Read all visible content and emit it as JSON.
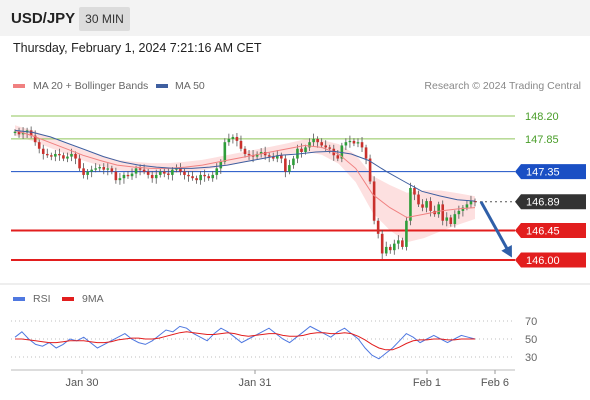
{
  "header": {
    "symbol": "USD/JPY",
    "timeframe": "30 MIN"
  },
  "datetime": "Thursday, February 1, 2024 7:21:16 AM CET",
  "legend": {
    "ma20_label": "MA 20 + Bollinger Bands",
    "ma50_label": "MA 50",
    "credit": "Research © 2024 Trading Central"
  },
  "rsi_legend": {
    "rsi_label": "RSI",
    "ma_label": "9MA"
  },
  "colors": {
    "accent_blue": "#1a4fc4",
    "support_red": "#e21e1e",
    "resistance_green": "#8fc55a",
    "candle_up": "#2f9e3a",
    "candle_down": "#c9302c",
    "bollinger_fill": "#fde0e0",
    "ma20": "#f08080",
    "ma50": "#3f5fa0",
    "rsi": "#4f78e0",
    "rsi_ma": "#e21e1e",
    "forecast_arrow": "#2f5fa8",
    "current_price_tag": "#333333"
  },
  "chart_data": {
    "type": "candlestick",
    "instrument": "USD/JPY",
    "timeframe": "30 MIN",
    "y_range": [
      145.85,
      148.35
    ],
    "x_ticks": [
      "Jan 30",
      "Jan 31",
      "Feb 1",
      "Feb 6"
    ],
    "levels": [
      {
        "value": 148.2,
        "label": "148.20",
        "kind": "resistance"
      },
      {
        "value": 147.85,
        "label": "147.85",
        "kind": "resistance"
      },
      {
        "value": 147.35,
        "label": "147.35",
        "kind": "pivot"
      },
      {
        "value": 146.89,
        "label": "146.89",
        "kind": "current"
      },
      {
        "value": 146.45,
        "label": "146.45",
        "kind": "support"
      },
      {
        "value": 146.0,
        "label": "146.00",
        "kind": "support"
      }
    ],
    "forecast": {
      "from": 146.89,
      "to": 146.0
    },
    "candles_close": [
      147.96,
      147.92,
      147.95,
      147.98,
      147.9,
      147.8,
      147.7,
      147.62,
      147.6,
      147.58,
      147.62,
      147.6,
      147.55,
      147.58,
      147.62,
      147.55,
      147.4,
      147.3,
      147.35,
      147.38,
      147.4,
      147.42,
      147.38,
      147.4,
      147.35,
      147.22,
      147.25,
      147.3,
      147.28,
      147.32,
      147.4,
      147.38,
      147.35,
      147.3,
      147.25,
      147.3,
      147.35,
      147.32,
      147.3,
      147.38,
      147.4,
      147.35,
      147.3,
      147.28,
      147.25,
      147.22,
      147.3,
      147.28,
      147.25,
      147.3,
      147.4,
      147.5,
      147.8,
      147.85,
      147.88,
      147.82,
      147.7,
      147.62,
      147.6,
      147.58,
      147.62,
      147.65,
      147.6,
      147.58,
      147.55,
      147.6,
      147.55,
      147.35,
      147.45,
      147.55,
      147.7,
      147.65,
      147.72,
      147.8,
      147.85,
      147.8,
      147.75,
      147.72,
      147.7,
      147.6,
      147.55,
      147.75,
      147.8,
      147.82,
      147.78,
      147.8,
      147.72,
      147.55,
      147.2,
      146.6,
      146.4,
      146.1,
      146.2,
      146.15,
      146.25,
      146.3,
      146.2,
      146.6,
      147.1,
      147.0,
      146.85,
      146.8,
      146.9,
      146.75,
      146.7,
      146.85,
      146.6,
      146.65,
      146.55,
      146.7,
      146.75,
      146.8,
      146.85,
      146.9,
      146.89
    ],
    "ma20": [
      147.98,
      147.9,
      147.8,
      147.7,
      147.6,
      147.52,
      147.45,
      147.42,
      147.4,
      147.4,
      147.42,
      147.45,
      147.5,
      147.55,
      147.6,
      147.65,
      147.7,
      147.75,
      147.72,
      147.62,
      147.4,
      147.0,
      146.8,
      146.65,
      146.7,
      146.75,
      146.78,
      146.8
    ],
    "ma50": [
      147.98,
      147.95,
      147.88,
      147.78,
      147.68,
      147.58,
      147.5,
      147.45,
      147.42,
      147.4,
      147.4,
      147.42,
      147.45,
      147.5,
      147.55,
      147.6,
      147.62,
      147.65,
      147.66,
      147.62,
      147.52,
      147.35,
      147.2,
      147.05,
      146.98,
      146.92,
      146.9
    ],
    "rsi": {
      "levels": [
        70,
        50,
        30
      ],
      "rsi": [
        52,
        58,
        50,
        44,
        42,
        46,
        40,
        44,
        50,
        48,
        52,
        46,
        40,
        44,
        48,
        52,
        56,
        50,
        46,
        44,
        48,
        54,
        60,
        58,
        64,
        62,
        56,
        52,
        48,
        56,
        62,
        58,
        52,
        46,
        50,
        54,
        58,
        62,
        56,
        50,
        46,
        52,
        58,
        64,
        60,
        56,
        52,
        58,
        62,
        56,
        50,
        40,
        32,
        28,
        34,
        40,
        48,
        56,
        52,
        46,
        50,
        54,
        50,
        46,
        50,
        54,
        52,
        50
      ],
      "ma9": [
        50,
        50,
        49,
        48,
        47,
        46,
        46,
        47,
        48,
        48,
        48,
        47,
        46,
        46,
        47,
        49,
        50,
        51,
        51,
        50,
        50,
        51,
        53,
        55,
        57,
        58,
        57,
        56,
        55,
        55,
        56,
        57,
        56,
        54,
        53,
        54,
        55,
        56,
        56,
        54,
        53,
        53,
        54,
        56,
        57,
        57,
        56,
        56,
        57,
        56,
        53,
        49,
        44,
        40,
        38,
        38,
        41,
        45,
        48,
        49,
        49,
        50,
        50,
        49,
        49,
        50,
        50,
        50
      ]
    }
  }
}
